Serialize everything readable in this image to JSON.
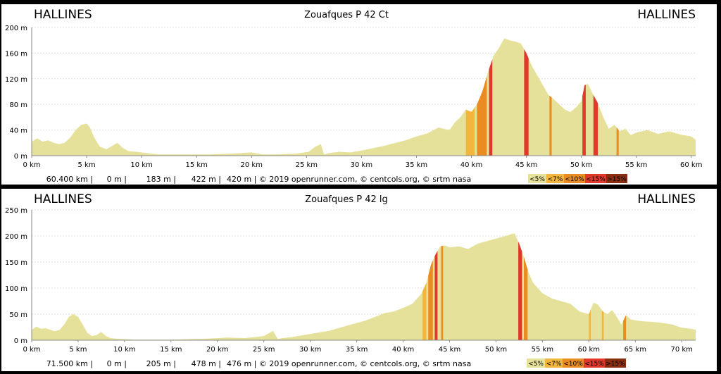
{
  "legend": {
    "labels": [
      "<5%",
      "<7%",
      "<10%",
      "<15%",
      ">15%"
    ],
    "colors": [
      "#e6e19a",
      "#f2b63c",
      "#ea8c22",
      "#e0392b",
      "#8a2d10"
    ]
  },
  "chart_data": [
    {
      "type": "area",
      "title": "Zouafques P 42 Ct",
      "start_label": "HALLINES",
      "end_label": "HALLINES",
      "xlabel": "",
      "ylabel": "",
      "xlim": [
        0,
        60.4
      ],
      "ylim": [
        0,
        200
      ],
      "x_ticks": [
        "0 km",
        "5 km",
        "10 km",
        "15 km",
        "20 km",
        "25 km",
        "30 km",
        "35 km",
        "40 km",
        "45 km",
        "50 km",
        "55 km",
        "60 km"
      ],
      "y_ticks": [
        "0 m",
        "40 m",
        "80 m",
        "120 m",
        "160 m",
        "200 m"
      ],
      "footer": [
        "60.400 km |",
        "0 m |",
        "183 m |",
        "422 m |",
        "420 m | © 2019 openrunner.com, © centcols.org, © srtm nasa"
      ],
      "grid": true,
      "fill_color": "#e6e19a",
      "x": [
        0,
        0.5,
        1,
        1.5,
        2,
        2.5,
        3,
        3.5,
        4,
        4.5,
        5,
        5.3,
        5.7,
        6.2,
        6.8,
        7.3,
        7.8,
        8.3,
        8.8,
        9.5,
        10.5,
        11.5,
        12.5,
        14,
        16,
        18,
        20,
        21,
        22,
        24,
        25.2,
        25.8,
        26.3,
        26.6,
        27,
        28,
        29,
        30,
        32,
        34,
        35,
        36,
        37,
        38,
        38.5,
        39,
        39.5,
        40,
        40.5,
        41,
        41.5,
        42,
        42.5,
        43,
        43.5,
        44,
        44.5,
        45,
        45.5,
        46,
        46.5,
        47,
        47.5,
        48,
        48.5,
        49,
        49.5,
        50,
        50.3,
        50.6,
        51,
        51.5,
        52,
        52.5,
        53,
        53.5,
        54,
        54.5,
        55,
        56,
        57,
        58,
        59,
        60,
        60.4
      ],
      "y": [
        22,
        27,
        22,
        24,
        20,
        18,
        20,
        28,
        40,
        48,
        50,
        44,
        28,
        14,
        10,
        15,
        20,
        12,
        7,
        6,
        4,
        2,
        2,
        2,
        2,
        3,
        5,
        2,
        2,
        3,
        6,
        14,
        18,
        2,
        4,
        6,
        5,
        8,
        15,
        24,
        30,
        35,
        44,
        40,
        52,
        60,
        72,
        68,
        80,
        100,
        130,
        155,
        168,
        183,
        180,
        178,
        175,
        160,
        140,
        125,
        110,
        95,
        88,
        80,
        72,
        68,
        75,
        85,
        110,
        112,
        98,
        82,
        60,
        42,
        48,
        38,
        42,
        32,
        36,
        40,
        34,
        38,
        33,
        30,
        25
      ],
      "steep_segments": [
        {
          "from": 39.5,
          "to": 40.3,
          "color": "#f2b63c"
        },
        {
          "from": 40.5,
          "to": 41.4,
          "color": "#ea8c22"
        },
        {
          "from": 41.6,
          "to": 41.9,
          "color": "#e0392b"
        },
        {
          "from": 44.8,
          "to": 45.2,
          "color": "#e0392b"
        },
        {
          "from": 47.1,
          "to": 47.3,
          "color": "#ea8c22"
        },
        {
          "from": 50.1,
          "to": 50.4,
          "color": "#e0392b"
        },
        {
          "from": 51.1,
          "to": 51.5,
          "color": "#e0392b"
        },
        {
          "from": 53.2,
          "to": 53.4,
          "color": "#ea8c22"
        }
      ]
    },
    {
      "type": "area",
      "title": "Zouafques P 42 lg",
      "start_label": "HALLINES",
      "end_label": "HALLINES",
      "xlabel": "",
      "ylabel": "",
      "xlim": [
        0,
        71.5
      ],
      "ylim": [
        0,
        250
      ],
      "x_ticks": [
        "0 km",
        "5 km",
        "10 km",
        "15 km",
        "20 km",
        "25 km",
        "30 km",
        "35 km",
        "40 km",
        "45 km",
        "50 km",
        "55 km",
        "60 km",
        "65 km",
        "70 km"
      ],
      "y_ticks": [
        "0 m",
        "50 m",
        "100 m",
        "150 m",
        "200 m",
        "250 m"
      ],
      "footer": [
        "71.500 km |",
        "0 m |",
        "205 m |",
        "478 m |",
        "476 m | © 2019 openrunner.com, © centcols.org, © srtm nasa"
      ],
      "grid": true,
      "fill_color": "#e6e19a",
      "x": [
        0,
        0.5,
        1,
        1.5,
        2,
        2.5,
        3,
        3.5,
        4,
        4.5,
        5,
        5.5,
        6,
        6.5,
        7,
        7.5,
        8,
        8.5,
        9,
        10,
        11,
        12,
        13,
        15,
        17,
        19,
        21,
        23,
        25,
        26,
        26.5,
        27,
        28,
        29,
        30,
        32,
        34,
        36,
        37,
        38,
        39,
        40,
        41,
        42,
        42.5,
        43,
        43.5,
        44,
        44.5,
        45,
        46,
        47,
        48,
        49,
        50,
        51,
        52,
        52.5,
        53,
        53.5,
        54,
        54.5,
        55,
        56,
        57,
        58,
        59,
        60,
        60.5,
        61,
        61.5,
        62,
        62.5,
        63,
        63.5,
        64,
        64.5,
        65,
        66,
        67,
        68,
        69,
        70,
        71,
        71.5
      ],
      "y": [
        20,
        26,
        22,
        23,
        20,
        17,
        20,
        30,
        45,
        50,
        45,
        30,
        14,
        8,
        10,
        16,
        8,
        4,
        3,
        2,
        1,
        1,
        1,
        1,
        2,
        3,
        5,
        4,
        8,
        18,
        2,
        4,
        6,
        9,
        12,
        18,
        28,
        38,
        45,
        52,
        55,
        62,
        70,
        90,
        110,
        145,
        165,
        180,
        182,
        178,
        180,
        175,
        185,
        190,
        195,
        200,
        205,
        185,
        160,
        130,
        110,
        100,
        90,
        80,
        75,
        70,
        55,
        50,
        72,
        68,
        55,
        50,
        58,
        45,
        30,
        48,
        40,
        38,
        36,
        35,
        33,
        30,
        24,
        22,
        20
      ],
      "steep_segments": [
        {
          "from": 42.1,
          "to": 42.5,
          "color": "#f2b63c"
        },
        {
          "from": 42.7,
          "to": 43.2,
          "color": "#ea8c22"
        },
        {
          "from": 43.4,
          "to": 43.7,
          "color": "#e0392b"
        },
        {
          "from": 44.1,
          "to": 44.3,
          "color": "#ea8c22"
        },
        {
          "from": 52.4,
          "to": 52.8,
          "color": "#e0392b"
        },
        {
          "from": 53.0,
          "to": 53.4,
          "color": "#ea8c22"
        },
        {
          "from": 60.0,
          "to": 60.2,
          "color": "#f2b63c"
        },
        {
          "from": 61.4,
          "to": 61.6,
          "color": "#f2b63c"
        },
        {
          "from": 63.7,
          "to": 64.0,
          "color": "#ea8c22"
        }
      ]
    }
  ]
}
